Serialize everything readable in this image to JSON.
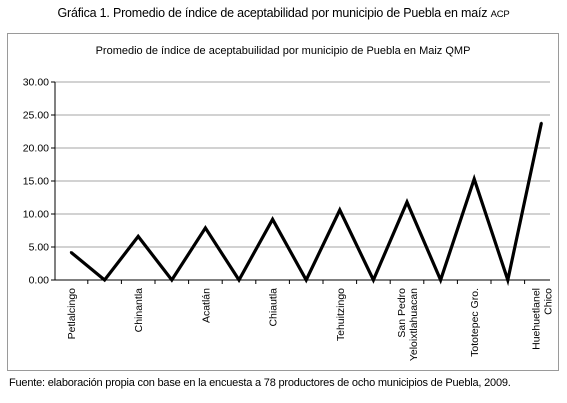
{
  "figure": {
    "caption": "Gráfica 1. Promedio de índice de aceptabilidad por municipio de Puebla en maíz",
    "caption_suffix": "ACP",
    "source": "Fuente: elaboración propia con base en la encuesta a 78 productores de ocho municipios de Puebla, 2009."
  },
  "chart_data": {
    "type": "line",
    "title": "Promedio de índice de aceptabuilidad por municipio de Puebla en Maiz QMP",
    "xlabel": "",
    "ylabel": "",
    "ylim": [
      0,
      30
    ],
    "y_ticks": [
      "30.00",
      "25.00",
      "20.00",
      "15.00",
      "10.00",
      "5.00",
      "0.00"
    ],
    "grid": true,
    "legend": "none",
    "line_color": "#000000",
    "x_labels": [
      [
        "Petlalcingo"
      ],
      [
        "Chinantla"
      ],
      [
        "Acatlán"
      ],
      [
        "Chiautla"
      ],
      [
        "Tehuitzingo"
      ],
      [
        "San Pedro",
        "Yeloixtlahuacan"
      ],
      [
        "Tototepec Gro."
      ],
      [
        "Huehuetlanel",
        "Chico"
      ]
    ],
    "values": [
      4.2,
      0,
      6.6,
      0,
      7.9,
      0,
      9.2,
      0,
      10.6,
      0,
      11.8,
      0,
      15.3,
      0,
      23.8
    ]
  }
}
